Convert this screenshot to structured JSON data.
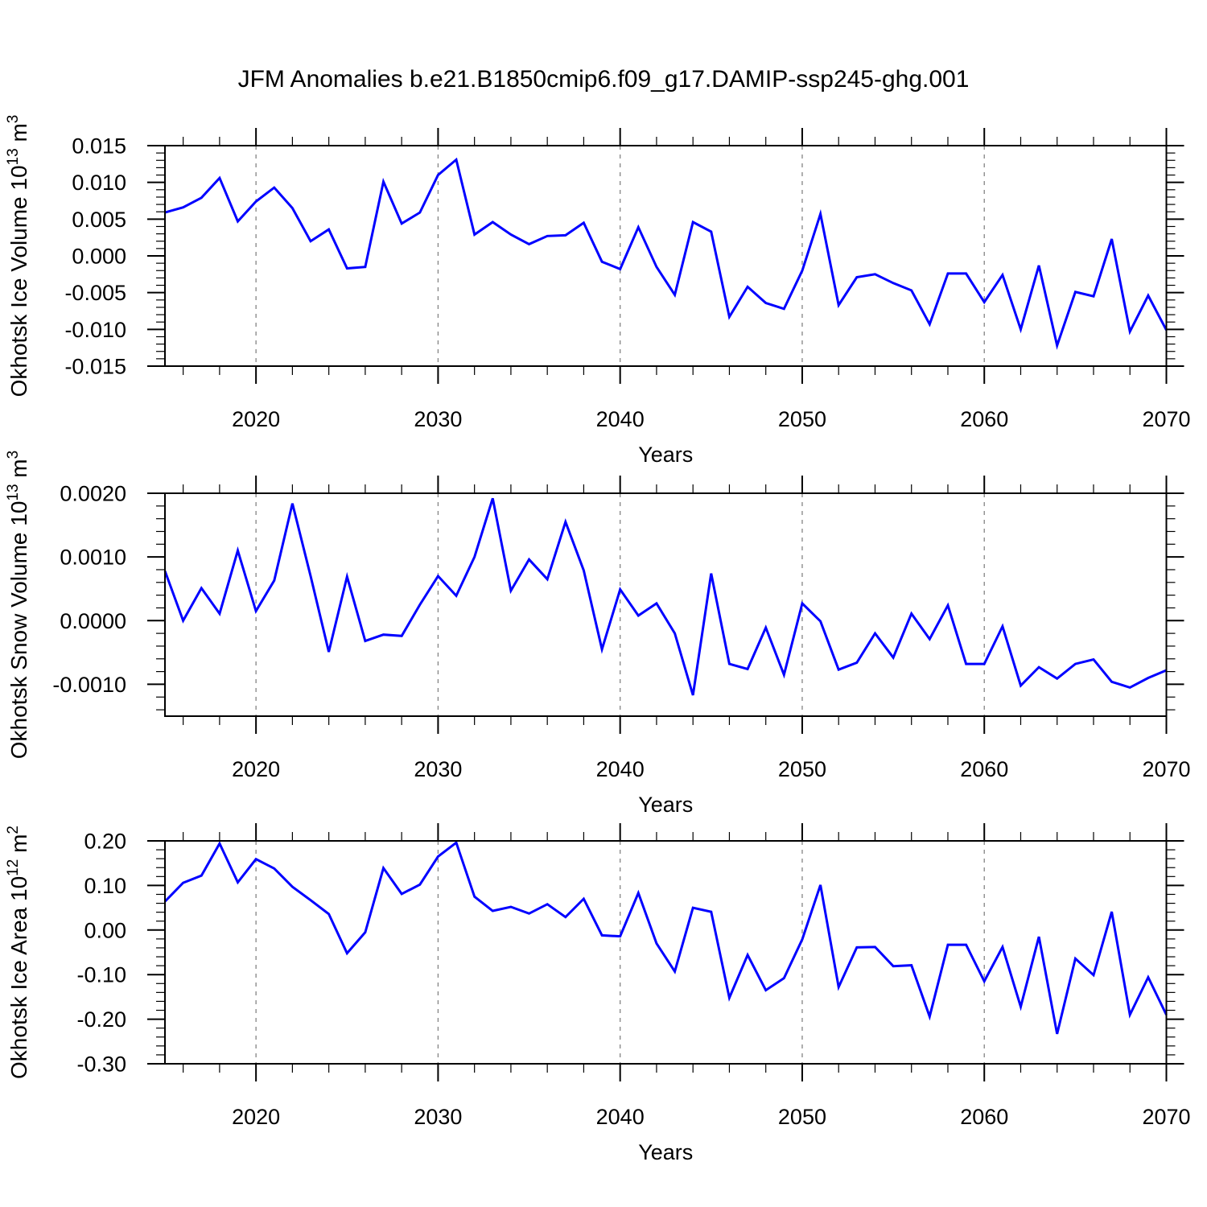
{
  "title": "JFM Anomalies b.e21.B1850cmip6.f09_g17.DAMIP-ssp245-ghg.001",
  "colors": {
    "line": "#0000ff",
    "grid": "#848484",
    "axis": "#000000",
    "background": "#ffffff"
  },
  "x_axis": {
    "label": "Years",
    "range": [
      2015,
      2070
    ],
    "major_ticks": [
      2020,
      2030,
      2040,
      2050,
      2060,
      2070
    ],
    "major_tick_labels": [
      "2020",
      "2030",
      "2040",
      "2050",
      "2060",
      "2070"
    ],
    "minor_tick_step_years": 2,
    "gridlines_at": [
      2020,
      2030,
      2040,
      2050,
      2060
    ],
    "gridline_style": "dashed"
  },
  "years": [
    2015,
    2016,
    2017,
    2018,
    2019,
    2020,
    2021,
    2022,
    2023,
    2024,
    2025,
    2026,
    2027,
    2028,
    2029,
    2030,
    2031,
    2032,
    2033,
    2034,
    2035,
    2036,
    2037,
    2038,
    2039,
    2040,
    2041,
    2042,
    2043,
    2044,
    2045,
    2046,
    2047,
    2048,
    2049,
    2050,
    2051,
    2052,
    2053,
    2054,
    2055,
    2056,
    2057,
    2058,
    2059,
    2060,
    2061,
    2062,
    2063,
    2064,
    2065,
    2066,
    2067,
    2068,
    2069,
    2070
  ],
  "chart_data": [
    {
      "type": "line",
      "id": "ice-volume",
      "ylabel": "Okhotsk Ice Volume 10^13 m^3",
      "ylabel_parts": [
        {
          "text": "Okhotsk Ice Volume 10"
        },
        {
          "text": "13",
          "sup": true
        },
        {
          "text": " m"
        },
        {
          "text": "3",
          "sup": true
        }
      ],
      "ylim": [
        -0.015,
        0.015
      ],
      "ytick_values": [
        0.015,
        0.01,
        0.005,
        0.0,
        -0.005,
        -0.01,
        -0.015
      ],
      "ytick_labels": [
        "0.015",
        "0.010",
        "0.005",
        "0.000",
        "-0.005",
        "-0.010",
        "-0.015"
      ],
      "ytick_minor_step": 0.001,
      "values": [
        0.0059,
        0.0066,
        0.0079,
        0.0106,
        0.0047,
        0.0074,
        0.0093,
        0.0065,
        0.002,
        0.0036,
        -0.0017,
        -0.0015,
        0.0101,
        0.0044,
        0.0059,
        0.011,
        0.0131,
        0.0029,
        0.0046,
        0.0029,
        0.0016,
        0.0027,
        0.0028,
        0.0045,
        -0.0008,
        -0.0018,
        0.0039,
        -0.0015,
        -0.0053,
        0.0046,
        0.0033,
        -0.0083,
        -0.0042,
        -0.0064,
        -0.0072,
        -0.002,
        0.0057,
        -0.0067,
        -0.0029,
        -0.0025,
        -0.0037,
        -0.0047,
        -0.0093,
        -0.0024,
        -0.0024,
        -0.0063,
        -0.0026,
        -0.01,
        -0.0013,
        -0.0122,
        -0.0049,
        -0.0055,
        0.0023,
        -0.0103,
        -0.0054,
        -0.0101
      ]
    },
    {
      "type": "line",
      "id": "snow-volume",
      "ylabel": "Okhotsk Snow Volume 10^13 m^3",
      "ylabel_parts": [
        {
          "text": "Okhotsk Snow Volume 10"
        },
        {
          "text": "13",
          "sup": true
        },
        {
          "text": " m"
        },
        {
          "text": "3",
          "sup": true
        }
      ],
      "ylim": [
        -0.0015,
        0.002
      ],
      "ytick_values": [
        0.002,
        0.001,
        0.0,
        -0.001
      ],
      "ytick_labels": [
        "0.0020",
        "0.0010",
        "0.0000",
        "-0.0010"
      ],
      "ytick_minor_step": 0.0002,
      "values": [
        0.00078,
        0.0,
        0.00051,
        0.00011,
        0.0011,
        0.00015,
        0.00063,
        0.00184,
        0.0007,
        -0.00049,
        0.00069,
        -0.00032,
        -0.00022,
        -0.00024,
        0.00025,
        0.0007,
        0.00039,
        0.001,
        0.00192,
        0.00047,
        0.00096,
        0.00065,
        0.00155,
        0.00079,
        -0.00045,
        0.00049,
        8e-05,
        0.00027,
        -0.0002,
        -0.00117,
        0.00074,
        -0.00068,
        -0.00076,
        -0.00011,
        -0.00085,
        0.00027,
        -1e-05,
        -0.00077,
        -0.00066,
        -0.0002,
        -0.00058,
        0.00011,
        -0.00029,
        0.00024,
        -0.00068,
        -0.00068,
        -9e-05,
        -0.00102,
        -0.00073,
        -0.00091,
        -0.00068,
        -0.00061,
        -0.00096,
        -0.00105,
        -0.0009,
        -0.00078
      ]
    },
    {
      "type": "line",
      "id": "ice-area",
      "ylabel": "Okhotsk Ice Area 10^12 m^2",
      "ylabel_parts": [
        {
          "text": "Okhotsk Ice Area 10"
        },
        {
          "text": "12",
          "sup": true
        },
        {
          "text": " m"
        },
        {
          "text": "2",
          "sup": true
        }
      ],
      "ylim": [
        -0.3,
        0.2
      ],
      "ytick_values": [
        0.2,
        0.1,
        0.0,
        -0.1,
        -0.2,
        -0.3
      ],
      "ytick_labels": [
        "0.20",
        "0.10",
        "0.00",
        "-0.10",
        "-0.20",
        "-0.30"
      ],
      "ytick_minor_step": 0.02,
      "values": [
        0.064,
        0.106,
        0.122,
        0.194,
        0.107,
        0.159,
        0.138,
        0.097,
        0.067,
        0.036,
        -0.052,
        -0.005,
        0.139,
        0.081,
        0.102,
        0.165,
        0.196,
        0.075,
        0.043,
        0.052,
        0.037,
        0.058,
        0.029,
        0.07,
        -0.012,
        -0.014,
        0.083,
        -0.03,
        -0.093,
        0.05,
        0.041,
        -0.152,
        -0.056,
        -0.135,
        -0.108,
        -0.021,
        0.101,
        -0.128,
        -0.039,
        -0.038,
        -0.081,
        -0.079,
        -0.194,
        -0.033,
        -0.033,
        -0.115,
        -0.038,
        -0.172,
        -0.015,
        -0.233,
        -0.064,
        -0.101,
        0.041,
        -0.19,
        -0.106,
        -0.19
      ]
    }
  ]
}
